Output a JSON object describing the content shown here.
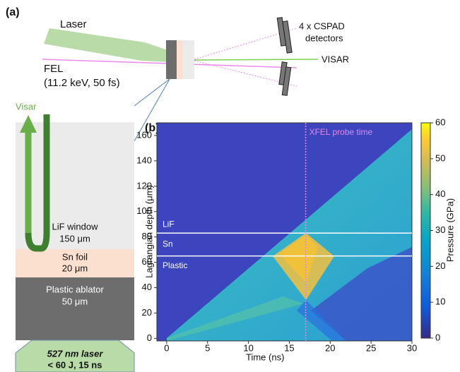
{
  "panel_a": {
    "label": "(a)",
    "laser": "Laser",
    "fel": "FEL",
    "fel_params": "(11.2 keV, 50 fs)",
    "detectors_line1": "4 x CSPAD",
    "detectors_line2": "detectors",
    "visar": "VISAR",
    "visar_arrow": "Visar",
    "lif": "LiF window",
    "lif_thickness": "150 μm",
    "sn": "Sn foil",
    "sn_thickness": "20 μm",
    "plastic": "Plastic ablator",
    "plastic_thickness": "50 μm",
    "drive_laser": "527 nm laser",
    "drive_params": "< 60 J, 15 ns"
  },
  "chart_data": {
    "type": "heatmap",
    "label": "(b)",
    "xlabel": "Time (ns)",
    "ylabel": "Lagrangian depth (μm)",
    "colorbar_label": "Pressure (GPa)",
    "xlim": [
      -1.2,
      30
    ],
    "xticks": [
      0,
      5,
      10,
      15,
      20,
      25,
      30
    ],
    "ylim": [
      -2,
      170
    ],
    "yticks": [
      0,
      20,
      40,
      60,
      80,
      100,
      120,
      140,
      160
    ],
    "clim": [
      0,
      60
    ],
    "cticks": [
      0,
      10,
      20,
      30,
      40,
      50,
      60
    ],
    "layer_boundaries": [
      65,
      83
    ],
    "layer_labels": [
      "Plastic",
      "Sn",
      "LiF"
    ],
    "probe_time": 17,
    "probe_label": "XFEL probe time"
  }
}
